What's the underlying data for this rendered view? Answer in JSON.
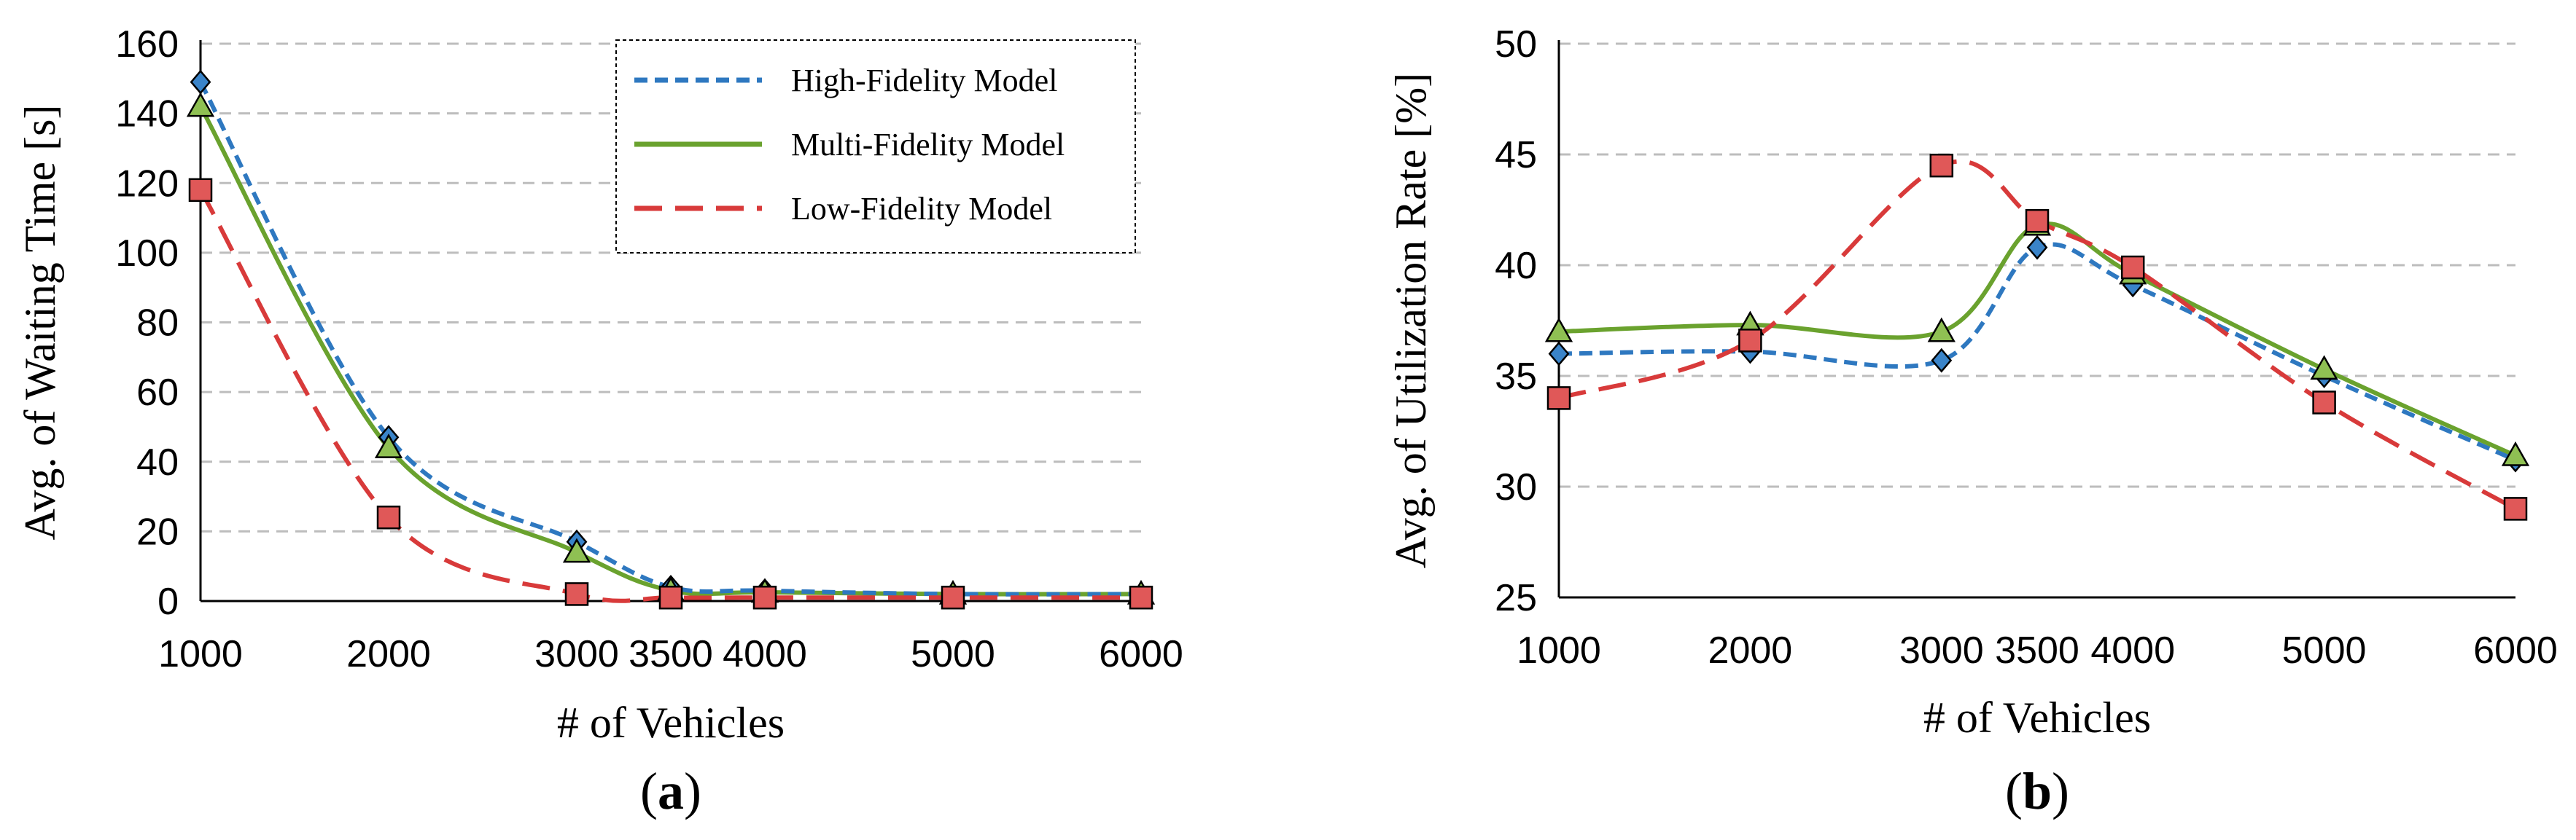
{
  "chart_data": [
    {
      "type": "line",
      "panel_label": "a",
      "xlabel": "# of Vehicles",
      "ylabel": "Avg. of Waiting Time [s]",
      "x": [
        1000,
        2000,
        3000,
        3500,
        4000,
        5000,
        6000
      ],
      "xlim": [
        1000,
        6000
      ],
      "ylim": [
        0,
        160
      ],
      "yticks": [
        0,
        20,
        40,
        60,
        80,
        100,
        120,
        140,
        160
      ],
      "grid": "horizontal dashed",
      "legend_position": "top-right",
      "series": [
        {
          "name": "High-Fidelity Model",
          "values": [
            149,
            47,
            17,
            4,
            3,
            2,
            2
          ],
          "color": "#2e78c0",
          "style": "short-dash",
          "marker": "diamond",
          "marker_color": "#3a84c9"
        },
        {
          "name": "Multi-Fidelity Model",
          "values": [
            142,
            44,
            14,
            3,
            2.5,
            2,
            2
          ],
          "color": "#6aa22e",
          "style": "solid",
          "marker": "triangle",
          "marker_color": "#8fc053"
        },
        {
          "name": "Low-Fidelity Model",
          "values": [
            118,
            24,
            2,
            1,
            1,
            1,
            1
          ],
          "color": "#d83a3a",
          "style": "long-dash",
          "marker": "square",
          "marker_color": "#e05858"
        }
      ]
    },
    {
      "type": "line",
      "panel_label": "b",
      "xlabel": "# of Vehicles",
      "ylabel": "Avg. of Utilization Rate [%]",
      "x": [
        1000,
        2000,
        3000,
        3500,
        4000,
        5000,
        6000
      ],
      "xlim": [
        1000,
        6000
      ],
      "ylim": [
        25,
        50
      ],
      "yticks": [
        25,
        30,
        35,
        40,
        45,
        50
      ],
      "grid": "horizontal dashed",
      "series": [
        {
          "name": "High-Fidelity Model",
          "values": [
            36,
            36.1,
            35.7,
            40.8,
            39.1,
            35,
            31.2
          ],
          "color": "#2e78c0",
          "style": "short-dash",
          "marker": "diamond",
          "marker_color": "#3a84c9"
        },
        {
          "name": "Multi-Fidelity Model",
          "values": [
            37,
            37.3,
            37,
            41.8,
            39.6,
            35.3,
            31.4
          ],
          "color": "#6aa22e",
          "style": "solid",
          "marker": "triangle",
          "marker_color": "#8fc053"
        },
        {
          "name": "Low-Fidelity Model",
          "values": [
            34,
            36.6,
            44.5,
            42,
            39.9,
            33.8,
            29
          ],
          "color": "#d83a3a",
          "style": "long-dash",
          "marker": "square",
          "marker_color": "#e05858"
        }
      ]
    }
  ]
}
